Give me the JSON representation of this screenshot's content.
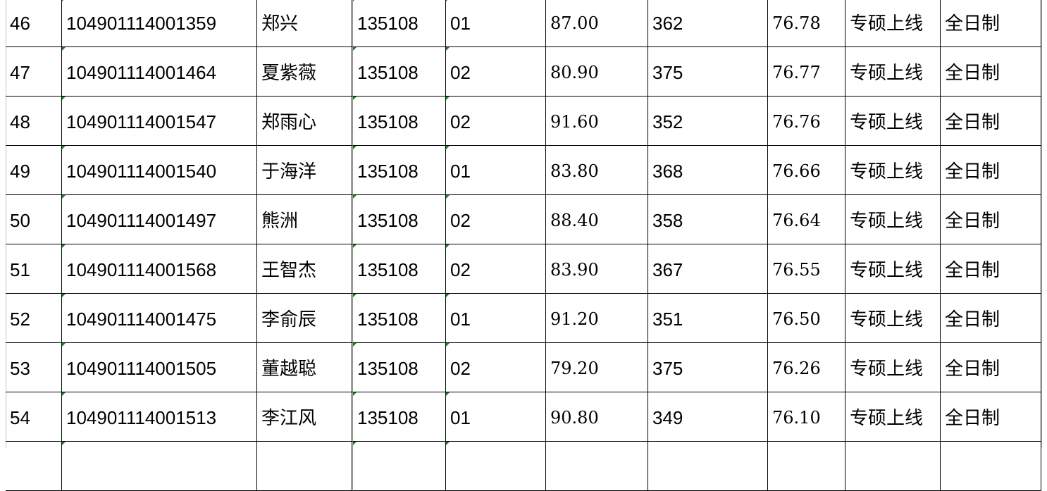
{
  "rows": [
    {
      "no": "46",
      "id": "104901114001359",
      "name": "郑兴",
      "code": "135108",
      "dir": "01",
      "s1": "87.00",
      "s2": "362",
      "total": "76.78",
      "type": "专硕上线",
      "mode": "全日制"
    },
    {
      "no": "47",
      "id": "104901114001464",
      "name": "夏紫薇",
      "code": "135108",
      "dir": "02",
      "s1": "80.90",
      "s2": "375",
      "total": "76.77",
      "type": "专硕上线",
      "mode": "全日制"
    },
    {
      "no": "48",
      "id": "104901114001547",
      "name": "郑雨心",
      "code": "135108",
      "dir": "02",
      "s1": "91.60",
      "s2": "352",
      "total": "76.76",
      "type": "专硕上线",
      "mode": "全日制"
    },
    {
      "no": "49",
      "id": "104901114001540",
      "name": "于海洋",
      "code": "135108",
      "dir": "01",
      "s1": "83.80",
      "s2": "368",
      "total": "76.66",
      "type": "专硕上线",
      "mode": "全日制"
    },
    {
      "no": "50",
      "id": "104901114001497",
      "name": "熊洲",
      "code": "135108",
      "dir": "02",
      "s1": "88.40",
      "s2": "358",
      "total": "76.64",
      "type": "专硕上线",
      "mode": "全日制"
    },
    {
      "no": "51",
      "id": "104901114001568",
      "name": "王智杰",
      "code": "135108",
      "dir": "02",
      "s1": "83.90",
      "s2": "367",
      "total": "76.55",
      "type": "专硕上线",
      "mode": "全日制"
    },
    {
      "no": "52",
      "id": "104901114001475",
      "name": "李俞辰",
      "code": "135108",
      "dir": "01",
      "s1": "91.20",
      "s2": "351",
      "total": "76.50",
      "type": "专硕上线",
      "mode": "全日制"
    },
    {
      "no": "53",
      "id": "104901114001505",
      "name": "董越聪",
      "code": "135108",
      "dir": "02",
      "s1": "79.20",
      "s2": "375",
      "total": "76.26",
      "type": "专硕上线",
      "mode": "全日制"
    },
    {
      "no": "54",
      "id": "104901114001513",
      "name": "李江风",
      "code": "135108",
      "dir": "01",
      "s1": "90.80",
      "s2": "349",
      "total": "76.10",
      "type": "专硕上线",
      "mode": "全日制"
    },
    {
      "no": "",
      "id": "",
      "name": "",
      "code": "",
      "dir": "",
      "s1": "",
      "s2": "",
      "total": "",
      "type": "",
      "mode": ""
    }
  ],
  "colors": {
    "grid": "#000000",
    "text_indicator": "#1a7f1a"
  }
}
